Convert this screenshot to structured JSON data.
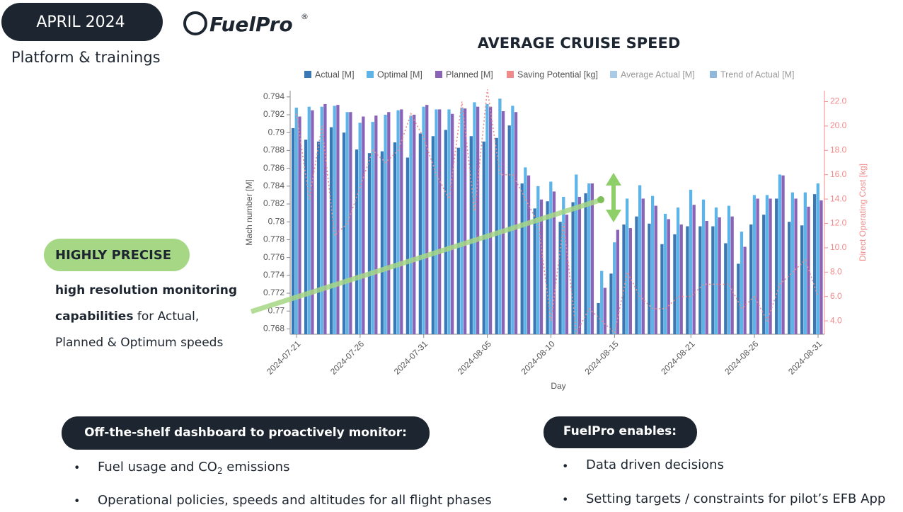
{
  "header": {
    "date": "APRIL 2024",
    "logo": "FuelPro",
    "logo_mark": "®",
    "subtitle": "Platform & trainings"
  },
  "callout": {
    "title": "HIGHLY PRECISE",
    "text": [
      "high resolution monitoring",
      "capabilities",
      " for Actual,",
      "Planned & Optimum speeds"
    ]
  },
  "left_panel": {
    "title": "Off-the-shelf dashboard to proactively monitor:",
    "bullets": [
      [
        "Fuel usage and CO",
        "2",
        " emissions"
      ],
      [
        "Operational policies, speeds and altitudes for all flight phases"
      ]
    ]
  },
  "right_panel": {
    "title": "FuelPro enables:",
    "bullets": [
      "Data driven decisions",
      "Setting targets / constraints for pilot’s EFB App"
    ]
  },
  "chart_data": {
    "type": "bar",
    "title": "AVERAGE CRUISE SPEED",
    "x_label": "Day",
    "y_label": "Mach number [M]",
    "y2_label": "Direct Operating Cost [kg]",
    "categories": [
      "2024-07-21",
      null,
      null,
      null,
      null,
      "2024-07-26",
      null,
      null,
      null,
      null,
      "2024-07-31",
      null,
      null,
      null,
      null,
      "2024-08-05",
      null,
      null,
      null,
      null,
      "2024-08-10",
      null,
      null,
      null,
      null,
      "2024-08-15",
      null,
      null,
      null,
      null,
      null,
      "2024-08-21",
      null,
      null,
      null,
      null,
      "2024-08-26",
      null,
      null,
      null,
      null,
      "2024-08-31"
    ],
    "ylim": [
      0.7674,
      0.7947
    ],
    "yticks": [
      0.768,
      0.77,
      0.772,
      0.774,
      0.776,
      0.778,
      0.78,
      0.782,
      0.784,
      0.786,
      0.788,
      0.79,
      0.792,
      0.794
    ],
    "y2lim": [
      2.9,
      22.9
    ],
    "y2ticks": [
      {
        "value": 4,
        "label": "4.0"
      },
      {
        "value": 6,
        "label": "6.0"
      },
      {
        "value": 8,
        "label": "8.0"
      },
      {
        "value": 10,
        "label": "10.0"
      },
      {
        "value": 12,
        "label": "12.0"
      },
      {
        "value": 14,
        "label": "14.0"
      },
      {
        "value": 16,
        "label": "16.0"
      },
      {
        "value": 18,
        "label": "18.0"
      },
      {
        "value": 20,
        "label": "20.0"
      },
      {
        "value": 22,
        "label": "22.0"
      }
    ],
    "grid": false,
    "legend": "top",
    "series": [
      {
        "name": "Actual [M]",
        "type": "bar",
        "color": "#3a78b5",
        "values": [
          0.7905,
          0.7892,
          0.789,
          0.7906,
          0.79,
          0.7881,
          0.7877,
          0.7879,
          0.7889,
          0.7872,
          0.7899,
          0.7896,
          0.7903,
          0.7883,
          0.7896,
          0.789,
          0.7894,
          0.7908,
          0.7843,
          0.7815,
          0.7823,
          0.78,
          0.7822,
          0.7832,
          0.7709,
          0.7742,
          0.7797,
          0.7806,
          0.7798,
          0.7775,
          0.7786,
          0.7795,
          0.7795,
          0.7795,
          0.7776,
          0.7753,
          0.7797,
          0.7808,
          0.7826,
          0.78,
          0.7796,
          0.7831
        ]
      },
      {
        "name": "Optimal [M]",
        "type": "bar",
        "color": "#5eb4e6",
        "values": [
          0.7928,
          0.7929,
          0.7929,
          0.793,
          0.7923,
          0.7911,
          0.7912,
          0.792,
          0.7925,
          0.7919,
          0.7929,
          0.7926,
          0.7926,
          0.7928,
          0.7934,
          0.7932,
          0.7938,
          0.793,
          0.7861,
          0.784,
          0.7845,
          0.7828,
          0.7853,
          0.7843,
          0.7745,
          0.7777,
          0.7826,
          0.7841,
          0.7829,
          0.7809,
          0.7816,
          0.7836,
          0.7825,
          0.7816,
          0.7818,
          0.7789,
          0.783,
          0.783,
          0.7853,
          0.7833,
          0.7833,
          0.7843
        ]
      },
      {
        "name": "Planned [M]",
        "type": "bar",
        "color": "#8a62b8",
        "values": [
          0.7918,
          0.7925,
          0.7932,
          0.7931,
          0.7923,
          0.7918,
          0.7919,
          0.7923,
          0.7926,
          0.792,
          0.7931,
          0.7926,
          0.7921,
          0.7927,
          0.7929,
          0.7929,
          0.7924,
          0.7923,
          0.7852,
          0.7825,
          0.7834,
          0.7808,
          0.7828,
          0.7843,
          0.7726,
          0.7791,
          0.7793,
          0.7826,
          0.7818,
          0.7803,
          0.7797,
          0.7819,
          0.7801,
          0.7805,
          0.7806,
          0.7772,
          0.7826,
          0.7826,
          0.7852,
          0.7826,
          0.7817,
          0.7824
        ]
      },
      {
        "name": "Saving Potential [kg]",
        "type": "line",
        "axis": "y2",
        "color": "#f08a8a",
        "values": [
          21,
          14,
          20,
          11,
          12,
          15,
          18,
          17,
          18,
          21,
          19,
          16,
          14,
          22,
          13,
          23,
          16,
          16,
          14,
          12,
          4,
          12,
          3,
          5,
          4,
          3,
          8,
          6,
          5,
          5,
          6,
          6,
          7,
          7,
          7,
          5,
          6,
          4,
          7,
          8,
          9,
          6
        ]
      },
      {
        "name": "Average Actual [M]",
        "type": "line",
        "color": "#a9cbe6",
        "values": [
          null,
          null,
          null,
          null,
          null,
          null,
          null,
          null,
          null,
          null,
          null,
          null,
          null,
          null,
          null,
          null,
          null,
          null,
          null,
          null,
          null,
          null,
          null,
          null,
          null,
          null,
          null,
          null,
          null,
          null,
          null,
          null,
          null,
          null,
          null,
          null,
          null,
          null,
          null,
          null,
          null,
          null
        ]
      },
      {
        "name": "Trend of Actual [M]",
        "type": "line",
        "color": "#8fb8da",
        "values": [
          null,
          null,
          null,
          null,
          null,
          null,
          null,
          null,
          null,
          null,
          null,
          null,
          null,
          null,
          null,
          null,
          null,
          null,
          null,
          null,
          null,
          null,
          null,
          null,
          null,
          null,
          null,
          null,
          null,
          null,
          null,
          null,
          null,
          null,
          null,
          null,
          null,
          null,
          null,
          null,
          null,
          null
        ]
      }
    ]
  }
}
